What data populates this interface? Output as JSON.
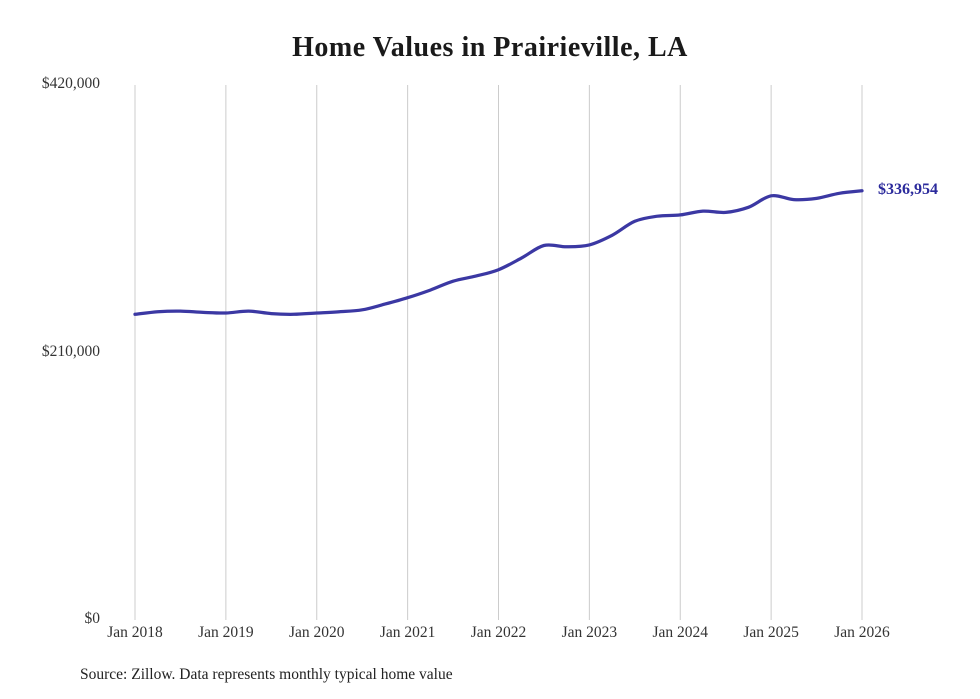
{
  "title": "Home Values in Prairieville, LA",
  "source_note": "Source: Zillow. Data represents monthly typical home value",
  "end_label": "$336,954",
  "colors": {
    "line": "#3b38a3",
    "end_label": "#2b2a9c",
    "grid": "#cccccc",
    "tick_text": "#333333",
    "title_text": "#1a1a1a",
    "background": "#ffffff"
  },
  "chart_data": {
    "type": "line",
    "title": "Home Values in Prairieville, LA",
    "xlabel": "",
    "ylabel": "",
    "ylim": [
      0,
      420000
    ],
    "grid": "vertical",
    "legend": "none",
    "y_ticks": [
      {
        "value": 0,
        "label": "$0"
      },
      {
        "value": 210000,
        "label": "$210,000"
      },
      {
        "value": 420000,
        "label": "$420,000"
      }
    ],
    "x_tick_labels": [
      "Jan 2018",
      "Jan 2019",
      "Jan 2020",
      "Jan 2021",
      "Jan 2022",
      "Jan 2023",
      "Jan 2024",
      "Jan 2025",
      "Jan 2026"
    ],
    "series_name": "Typical home value (monthly)",
    "x": [
      "2018-01",
      "2018-04",
      "2018-07",
      "2018-10",
      "2019-01",
      "2019-04",
      "2019-07",
      "2019-10",
      "2020-01",
      "2020-04",
      "2020-07",
      "2020-10",
      "2021-01",
      "2021-04",
      "2021-07",
      "2021-10",
      "2022-01",
      "2022-04",
      "2022-07",
      "2022-10",
      "2023-01",
      "2023-04",
      "2023-07",
      "2023-10",
      "2024-01",
      "2024-04",
      "2024-07",
      "2024-10",
      "2025-01",
      "2025-04",
      "2025-07",
      "2025-10",
      "2026-01"
    ],
    "values": [
      240000,
      242000,
      242500,
      241500,
      241000,
      242500,
      240500,
      240000,
      241000,
      242000,
      243500,
      248000,
      253000,
      259000,
      266000,
      270000,
      275000,
      284000,
      294000,
      293000,
      294500,
      302000,
      313000,
      317000,
      318000,
      321000,
      320000,
      324000,
      333000,
      330000,
      331000,
      335000,
      336954
    ],
    "latest_value": 336954,
    "latest_value_label": "$336,954"
  }
}
